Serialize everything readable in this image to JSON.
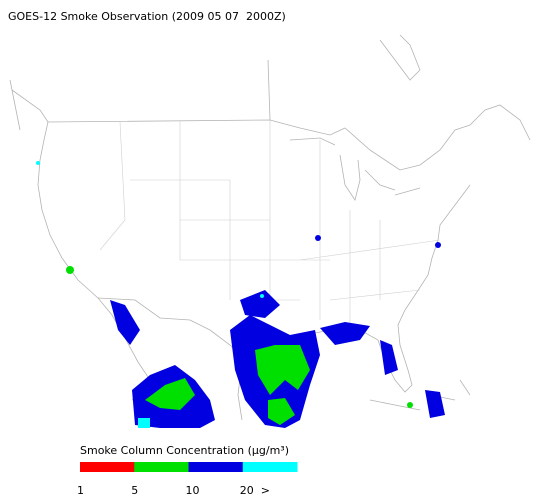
{
  "header": {
    "title": "GOES-12 Smoke Observation (2009 05 07  2000Z)"
  },
  "legend": {
    "title": "Smoke Column Concentration (μg/m³)",
    "colors": [
      "#ff0000",
      "#00e000",
      "#0000e0",
      "#00ffff"
    ],
    "labels": [
      "1",
      "5",
      "10",
      "20",
      ">"
    ]
  }
}
